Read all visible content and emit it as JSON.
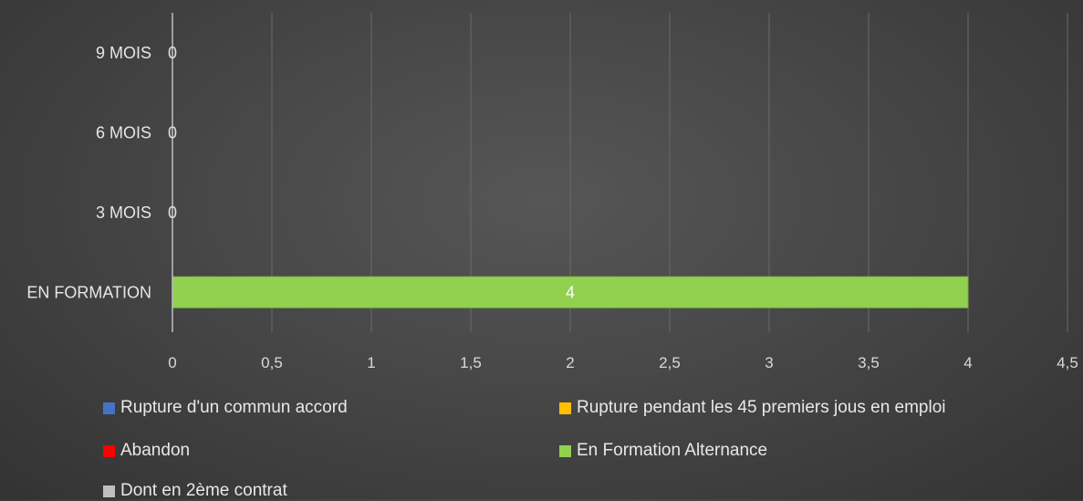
{
  "chart_data": {
    "type": "bar",
    "orientation": "horizontal",
    "stacked": true,
    "categories": [
      "EN FORMATION",
      "3 MOIS",
      "6 MOIS",
      "9 MOIS"
    ],
    "series": [
      {
        "name": "Rupture d'un commun accord",
        "color": "#4472C4",
        "values": [
          0,
          0,
          0,
          0
        ]
      },
      {
        "name": "Rupture pendant les 45 premiers jous en emploi",
        "color": "#FFC000",
        "values": [
          0,
          0,
          0,
          0
        ]
      },
      {
        "name": "Abandon",
        "color": "#FF0000",
        "values": [
          0,
          0,
          0,
          0
        ]
      },
      {
        "name": "En Formation Alternance",
        "color": "#92D050",
        "values": [
          4,
          0,
          0,
          0
        ]
      },
      {
        "name": "Dont en 2ème contrat",
        "color": "#BFBFBF",
        "values": [
          0,
          0,
          0,
          0
        ]
      }
    ],
    "data_labels": [
      {
        "category": "EN FORMATION",
        "text": "4"
      },
      {
        "category": "3 MOIS",
        "text": "0"
      },
      {
        "category": "6 MOIS",
        "text": "0"
      },
      {
        "category": "9 MOIS",
        "text": "0"
      }
    ],
    "xlim": [
      0,
      4.5
    ],
    "xticks": [
      "0",
      "0,5",
      "1",
      "1,5",
      "2",
      "2,5",
      "3",
      "3,5",
      "4",
      "4,5"
    ],
    "grid": true,
    "legend_position": "bottom",
    "title": "",
    "xlabel": "",
    "ylabel": ""
  }
}
